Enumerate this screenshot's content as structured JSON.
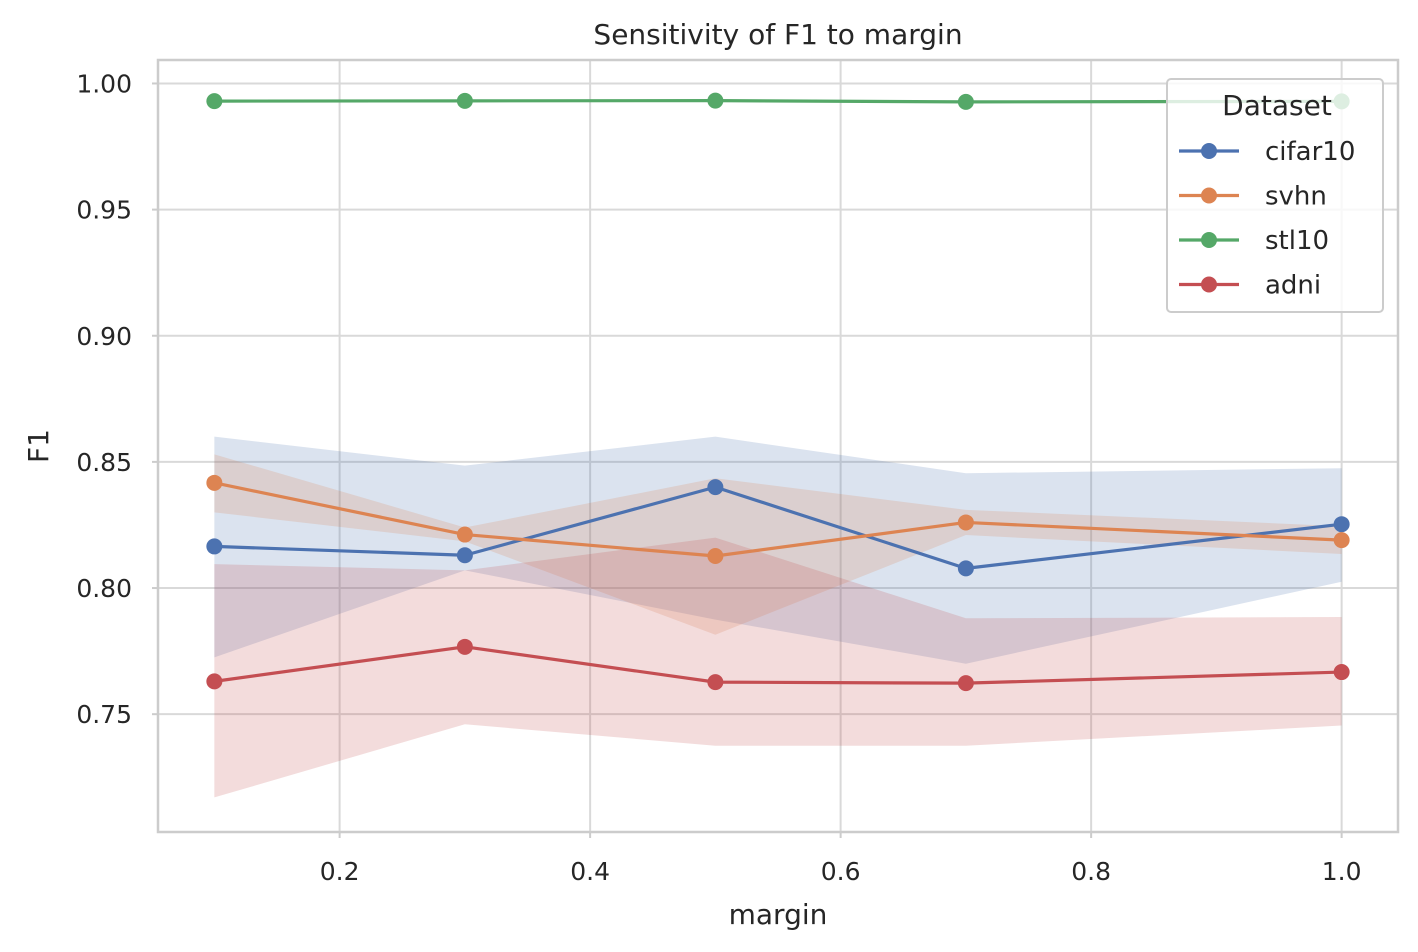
{
  "chart_data": {
    "type": "line",
    "title": "Sensitivity of F1 to margin",
    "xlabel": "margin",
    "ylabel": "F1",
    "xlim": [
      0.055,
      1.045
    ],
    "ylim": [
      0.7033,
      1.0093
    ],
    "xticks": [
      0.2,
      0.4,
      0.6,
      0.8,
      1.0
    ],
    "xtick_labels": [
      "0.2",
      "0.4",
      "0.6",
      "0.8",
      "1.0"
    ],
    "yticks": [
      0.75,
      0.8,
      0.85,
      0.9,
      0.95,
      1.0
    ],
    "ytick_labels": [
      "0.75",
      "0.80",
      "0.85",
      "0.90",
      "0.95",
      "1.00"
    ],
    "grid": true,
    "legend": {
      "title": "Dataset",
      "placement": "top-right"
    },
    "x": [
      0.1,
      0.3,
      0.5,
      0.7,
      1.0
    ],
    "series": [
      {
        "name": "cifar10",
        "color": "#4c72b0",
        "values": [
          0.8165,
          0.813,
          0.84,
          0.8078,
          0.8253
        ],
        "lower": [
          0.7725,
          0.807,
          0.7875,
          0.77,
          0.8025
        ],
        "upper": [
          0.86,
          0.8485,
          0.86,
          0.8455,
          0.8475
        ]
      },
      {
        "name": "svhn",
        "color": "#dd8452",
        "values": [
          0.8417,
          0.8212,
          0.8127,
          0.826,
          0.819
        ],
        "lower": [
          0.83,
          0.8185,
          0.7815,
          0.821,
          0.8135
        ],
        "upper": [
          0.853,
          0.824,
          0.8435,
          0.831,
          0.8245
        ]
      },
      {
        "name": "stl10",
        "color": "#55a868",
        "values": [
          0.993,
          0.9931,
          0.9932,
          0.9927,
          0.9929
        ],
        "lower": [
          0.9926,
          0.9928,
          0.9929,
          0.9924,
          0.9926
        ],
        "upper": [
          0.9934,
          0.9934,
          0.9935,
          0.993,
          0.9932
        ]
      },
      {
        "name": "adni",
        "color": "#c44e52",
        "values": [
          0.763,
          0.7767,
          0.7627,
          0.7623,
          0.7667
        ],
        "lower": [
          0.717,
          0.746,
          0.7375,
          0.7375,
          0.7455
        ],
        "upper": [
          0.8095,
          0.807,
          0.82,
          0.788,
          0.7885
        ]
      }
    ]
  }
}
